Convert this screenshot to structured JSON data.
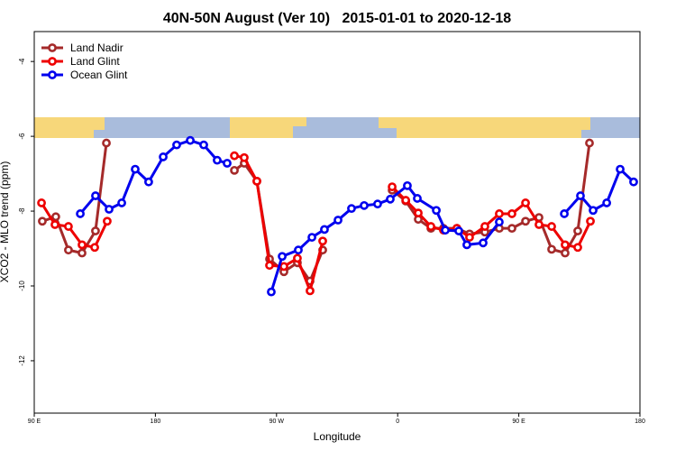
{
  "chart_data": {
    "type": "line",
    "title": "40N-50N August (Ver 10)   2015-01-01 to 2020-12-18",
    "xlabel": "Longitude",
    "ylabel": "XCO2 - MLO trend (ppm)",
    "xlim": [
      90,
      540
    ],
    "xticks": [
      {
        "value": 90,
        "label": "90 E"
      },
      {
        "value": 180,
        "label": "180"
      },
      {
        "value": 270,
        "label": "90 W"
      },
      {
        "value": 360,
        "label": "0"
      },
      {
        "value": 450,
        "label": "90 E"
      },
      {
        "value": 540,
        "label": "180"
      }
    ],
    "ylim": [
      -13.4,
      -3.2
    ],
    "yticks": [
      -4,
      -6,
      -8,
      -10,
      -12
    ],
    "legend": "upper left",
    "series": [
      {
        "name": "Land Nadir",
        "color": "#a52a2a",
        "x": [
          96,
          106,
          115.4,
          125.5,
          135.5,
          143.6,
          null,
          238.7,
          246,
          255.4,
          264.8,
          275.5,
          285.5,
          294.9,
          304.3,
          null,
          355.9,
          366,
          375.3,
          384.7,
          394,
          404,
          413.4,
          424.8,
          435.5,
          444.9,
          455,
          465,
          474.4,
          484.4,
          493.8,
          502.5
        ],
        "values": [
          -8.27,
          -8.15,
          -9.04,
          -9.12,
          -8.53,
          -6.18,
          null,
          -6.91,
          -6.72,
          -7.2,
          -9.28,
          -9.62,
          -9.38,
          -9.87,
          -9.04,
          null,
          -7.44,
          -7.73,
          -8.22,
          -8.46,
          -8.46,
          -8.46,
          -8.61,
          -8.56,
          -8.46,
          -8.46,
          -8.27,
          -8.17,
          -9.02,
          -9.12,
          -8.53,
          -6.18
        ]
      },
      {
        "name": "Land Glint",
        "color": "#ee0000",
        "x": [
          95.4,
          105.4,
          115.4,
          125.5,
          134.9,
          144.2,
          null,
          238.7,
          246,
          255.4,
          264.8,
          275.5,
          285.5,
          294.9,
          304.3,
          null,
          355.9,
          366,
          375.3,
          384.7,
          394,
          404,
          413.4,
          424.8,
          435.5,
          444.9,
          455,
          465,
          474.4,
          484.4,
          493.8,
          503.2
        ],
        "values": [
          -7.78,
          -8.36,
          -8.41,
          -8.9,
          -8.97,
          -8.27,
          null,
          -6.52,
          -6.57,
          -7.2,
          -9.45,
          -9.48,
          -9.26,
          -10.13,
          -8.8,
          null,
          -7.35,
          -7.71,
          -8.05,
          -8.41,
          -8.51,
          -8.46,
          -8.7,
          -8.41,
          -8.07,
          -8.07,
          -7.78,
          -8.36,
          -8.41,
          -8.9,
          -8.97,
          -8.27
        ]
      },
      {
        "name": "Ocean Glint",
        "color": "#0000ee",
        "x": [
          124.2,
          135.5,
          145.6,
          155,
          165,
          175,
          185.8,
          195.8,
          205.9,
          215.9,
          225.9,
          233.3,
          null,
          266.1,
          274.2,
          286.2,
          296.3,
          305.6,
          315.7,
          325.7,
          335.1,
          345.1,
          354.5,
          367.2,
          374.6,
          388.7,
          395.4,
          405.4,
          411.4,
          423.5,
          435.5,
          null,
          483.8,
          495.8,
          505.2,
          515.3,
          525.3,
          535.3
        ],
        "values": [
          -8.07,
          -7.59,
          -7.95,
          -7.78,
          -6.88,
          -7.22,
          -6.55,
          -6.23,
          -6.11,
          -6.23,
          -6.64,
          -6.72,
          null,
          -10.16,
          -9.21,
          -9.04,
          -8.7,
          -8.49,
          -8.24,
          -7.93,
          -7.85,
          -7.81,
          -7.68,
          -7.32,
          -7.66,
          -7.98,
          -8.51,
          -8.53,
          -8.9,
          -8.85,
          -8.29,
          null,
          -8.07,
          -7.59,
          -7.98,
          -7.78,
          -6.88,
          -7.22
        ]
      }
    ]
  }
}
